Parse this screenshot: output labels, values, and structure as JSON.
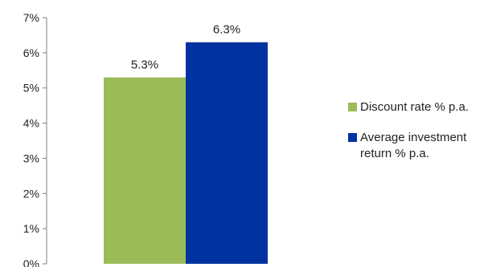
{
  "chart_data": {
    "type": "bar",
    "title": "",
    "xlabel": "",
    "ylabel": "",
    "ylim": [
      0,
      7
    ],
    "yticks": [
      "0%",
      "1%",
      "2%",
      "3%",
      "4%",
      "5%",
      "6%",
      "7%"
    ],
    "grid": false,
    "legend_position": "right",
    "series": [
      {
        "name": "Discount rate % p.a.",
        "value": 5.3,
        "label": "5.3%",
        "color": "#9BBB59"
      },
      {
        "name": "Average investment return % p.a.",
        "value": 6.3,
        "label": "6.3%",
        "color": "#0033A0"
      }
    ]
  }
}
